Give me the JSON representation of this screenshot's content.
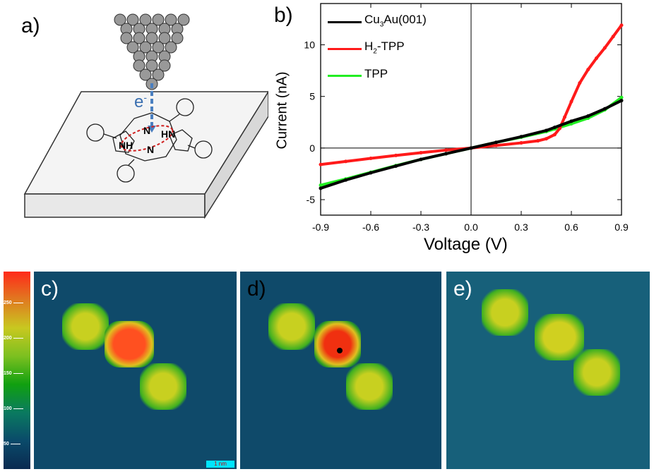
{
  "panels": {
    "a": "a)",
    "b": "b)",
    "c": "c)",
    "d": "d)",
    "e": "e)"
  },
  "diagram": {
    "electron_label": "e",
    "electron_sup": "-",
    "atoms": [
      "N",
      "HN",
      "NH",
      "N"
    ]
  },
  "colorbar": {
    "ticks": [
      "250",
      "200",
      "150",
      "100",
      "50"
    ],
    "colors": [
      "#ff2a1a",
      "#e07a20",
      "#c8c820",
      "#7cc020",
      "#10a010",
      "#0a7a60",
      "#0a4a6a",
      "#0a2a50"
    ]
  },
  "scale_bar": {
    "label": "1 nm",
    "color": "#00e5ff"
  },
  "chart_data": {
    "type": "line",
    "xlabel": "Voltage (V)",
    "ylabel": "Current (nA)",
    "xlim": [
      -0.9,
      0.9
    ],
    "ylim": [
      -6.5,
      14
    ],
    "xticks": [
      "-0.9",
      "-0.6",
      "-0.3",
      "0.0",
      "0.3",
      "0.6",
      "0.9"
    ],
    "yticks": [
      "-5",
      "0",
      "5",
      "10"
    ],
    "legend_position": "top-left",
    "grid": false,
    "series": [
      {
        "name": "Cu3Au(001)",
        "label_main": "Cu",
        "label_sub": "3",
        "label_rest": "Au(001)",
        "color": "#000000",
        "marker": "circle",
        "x": [
          -0.9,
          -0.75,
          -0.6,
          -0.45,
          -0.3,
          -0.15,
          0,
          0.15,
          0.3,
          0.45,
          0.5,
          0.6,
          0.7,
          0.8,
          0.9
        ],
        "y": [
          -3.9,
          -3.1,
          -2.4,
          -1.75,
          -1.1,
          -0.55,
          0,
          0.55,
          1.1,
          1.7,
          2.0,
          2.6,
          3.1,
          3.8,
          4.6
        ]
      },
      {
        "name": "H2-TPP",
        "label_main": "H",
        "label_sub": "2",
        "label_rest": "-TPP",
        "color": "#ff1a1a",
        "marker": "square",
        "x": [
          -0.9,
          -0.75,
          -0.6,
          -0.45,
          -0.3,
          -0.15,
          0,
          0.15,
          0.3,
          0.4,
          0.45,
          0.5,
          0.53,
          0.56,
          0.6,
          0.65,
          0.7,
          0.75,
          0.8,
          0.85,
          0.9
        ],
        "y": [
          -1.6,
          -1.3,
          -1.0,
          -0.72,
          -0.45,
          -0.2,
          0,
          0.25,
          0.5,
          0.7,
          0.9,
          1.3,
          1.9,
          3.0,
          4.5,
          6.3,
          7.6,
          8.7,
          9.7,
          10.8,
          11.9
        ]
      },
      {
        "name": "TPP",
        "label_main": "TPP",
        "label_sub": "",
        "label_rest": "",
        "color": "#22ee22",
        "marker": "triangle",
        "x": [
          -0.9,
          -0.75,
          -0.6,
          -0.45,
          -0.3,
          -0.15,
          0,
          0.15,
          0.3,
          0.45,
          0.5,
          0.6,
          0.7,
          0.8,
          0.9
        ],
        "y": [
          -3.6,
          -3.0,
          -2.35,
          -1.7,
          -1.1,
          -0.55,
          0,
          0.55,
          1.05,
          1.6,
          1.85,
          2.35,
          2.9,
          3.7,
          4.9
        ]
      }
    ]
  }
}
